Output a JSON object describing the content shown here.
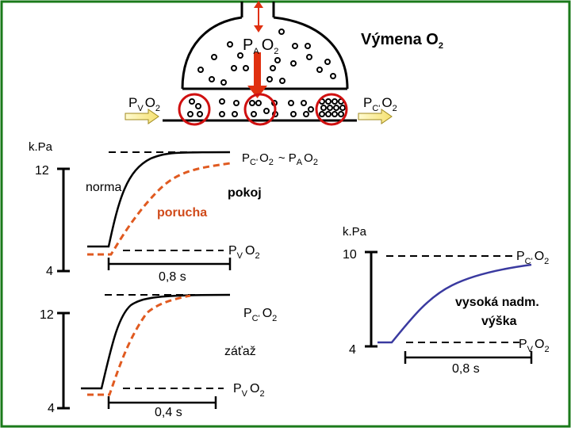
{
  "colors": {
    "frame": "#1a7a1a",
    "normal": "#000000",
    "fault": "#e05a20",
    "altitude": "#3a3aa0",
    "arrow_fill": "#fff6a0",
    "arrow_edge": "#a08a20",
    "pump": "#e03010",
    "circle": "#d01010"
  },
  "alveolus": {
    "gas_symbol": "P",
    "gas_sub": "A",
    "gas_name": "O",
    "gas_name_sub": "2",
    "exchange_title": "Výmena O",
    "exchange_title_sub": "2",
    "inflow_symbol": "P",
    "inflow_sub": "V",
    "inflow_gas": "O",
    "inflow_gas_sub": "2",
    "outflow_symbol": "P",
    "outflow_sub": "C'",
    "outflow_gas": "O",
    "outflow_gas_sub": "2"
  },
  "panel_rest": {
    "y_unit": "k.Pa",
    "y_tick_high": "12",
    "y_tick_low": "4",
    "label_normal": "norma",
    "label_fault": "porucha",
    "label_condition": "pokoj",
    "top_label_p": "P",
    "top_label_psub": "C'",
    "top_label_gas": "O",
    "top_label_gassub": "2",
    "top_label_tilde": "~ P",
    "top_label_tsub": "A",
    "top_label_gas2": "O",
    "top_label_gas2sub": "2",
    "bottom_label_p": "P",
    "bottom_label_psub": "V",
    "bottom_label_gas": "O",
    "bottom_label_gassub": "2",
    "time_label": "0,8 s"
  },
  "panel_exercise": {
    "y_tick_high": "12",
    "y_tick_low": "4",
    "label_condition": "záťaž",
    "top_label_p": "P",
    "top_label_psub": "C'",
    "top_label_gas": "O",
    "top_label_gassub": "2",
    "bottom_label_p": "P",
    "bottom_label_psub": "V",
    "bottom_label_gas": "O",
    "bottom_label_gassub": "2",
    "time_label": "0,4 s"
  },
  "panel_altitude": {
    "y_unit": "k.Pa",
    "y_tick_high": "10",
    "y_tick_low": "4",
    "label_condition_line1": "vysoká nadm.",
    "label_condition_line2": "výška",
    "top_label_p": "P",
    "top_label_psub": "C'",
    "top_label_gas": "O",
    "top_label_gassub": "2",
    "bottom_label_p": "P",
    "bottom_label_psub": "V",
    "bottom_label_gas": "O",
    "bottom_label_gassub": "2",
    "time_label": "0,8 s"
  }
}
